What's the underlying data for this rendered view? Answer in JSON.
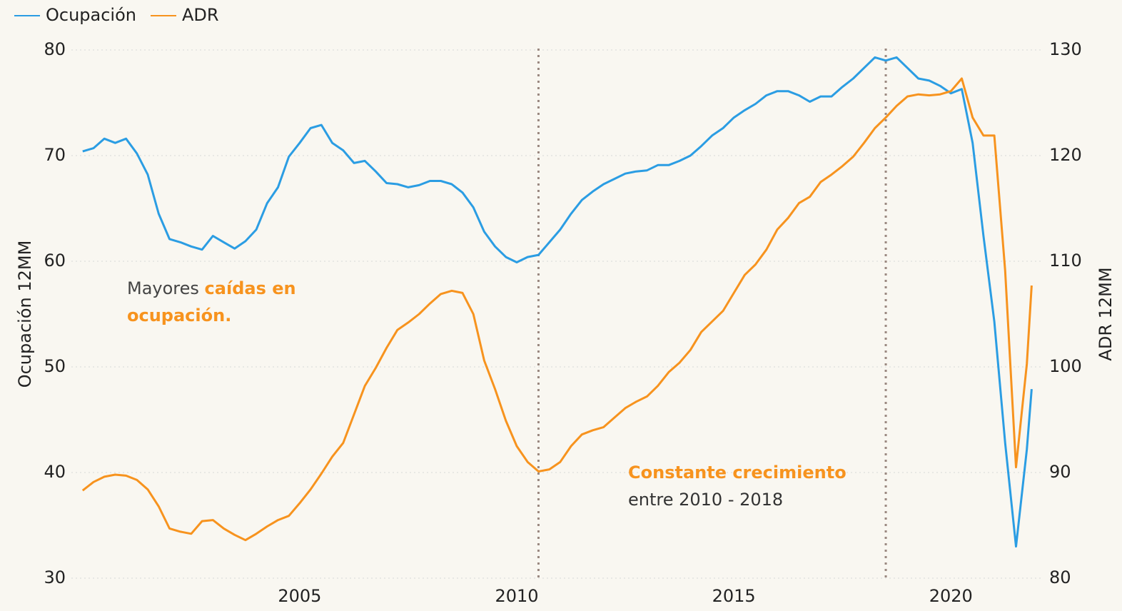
{
  "chart_data": {
    "type": "line",
    "x": [
      2000,
      2000.25,
      2000.5,
      2000.75,
      2001,
      2001.25,
      2001.5,
      2001.75,
      2002,
      2002.25,
      2002.5,
      2002.75,
      2003,
      2003.25,
      2003.5,
      2003.75,
      2004,
      2004.25,
      2004.5,
      2004.75,
      2005,
      2005.25,
      2005.5,
      2005.75,
      2006,
      2006.25,
      2006.5,
      2006.75,
      2007,
      2007.25,
      2007.5,
      2007.75,
      2008,
      2008.25,
      2008.5,
      2008.75,
      2009,
      2009.25,
      2009.5,
      2009.75,
      2010,
      2010.25,
      2010.5,
      2010.75,
      2011,
      2011.25,
      2011.5,
      2011.75,
      2012,
      2012.25,
      2012.5,
      2012.75,
      2013,
      2013.25,
      2013.5,
      2013.75,
      2014,
      2014.25,
      2014.5,
      2014.75,
      2015,
      2015.25,
      2015.5,
      2015.75,
      2016,
      2016.25,
      2016.5,
      2016.75,
      2017,
      2017.25,
      2017.5,
      2017.75,
      2018,
      2018.25,
      2018.5,
      2018.75,
      2019,
      2019.25,
      2019.5,
      2019.75,
      2020,
      2020.25,
      2020.5,
      2020.75,
      2021,
      2021.25,
      2021.5,
      2021.75,
      2021.86
    ],
    "series": [
      {
        "name": "Ocupación",
        "color": "#2b9de3",
        "values": [
          70.4,
          70.7,
          71.6,
          71.2,
          71.6,
          70.2,
          68.2,
          64.5,
          62.1,
          61.8,
          61.4,
          61.1,
          62.4,
          61.8,
          61.2,
          61.9,
          63.0,
          65.5,
          67.0,
          69.9,
          71.2,
          72.6,
          72.9,
          71.2,
          70.5,
          69.3,
          69.5,
          68.5,
          67.4,
          67.3,
          67.0,
          67.2,
          67.6,
          67.6,
          67.3,
          66.5,
          65.1,
          62.8,
          61.4,
          60.4,
          59.9,
          60.4,
          60.6,
          61.8,
          63.0,
          64.5,
          65.8,
          66.6,
          67.3,
          67.8,
          68.3,
          68.5,
          68.6,
          69.1,
          69.1,
          69.5,
          70.0,
          70.9,
          71.9,
          72.6,
          73.6,
          74.3,
          74.9,
          75.7,
          76.1,
          76.1,
          75.7,
          75.1,
          75.6,
          75.6,
          76.5,
          77.3,
          78.3,
          79.3,
          79.0,
          79.3,
          78.3,
          77.3,
          77.1,
          76.6,
          75.9,
          76.3,
          71.2,
          62.4,
          54.3,
          42.8,
          33.0,
          42.2,
          47.9
        ]
      },
      {
        "name": "ADR",
        "color": "#f7931e",
        "axis": "y2",
        "values": [
          88.3,
          89.1,
          89.6,
          89.8,
          89.7,
          89.3,
          88.4,
          86.8,
          84.7,
          84.4,
          84.2,
          85.4,
          85.5,
          84.7,
          84.1,
          83.6,
          84.2,
          84.9,
          85.5,
          85.9,
          87.1,
          88.4,
          89.9,
          91.5,
          92.8,
          95.5,
          98.2,
          99.9,
          101.8,
          103.5,
          104.2,
          105.0,
          106.0,
          106.9,
          107.2,
          107.0,
          105.0,
          100.6,
          97.9,
          94.9,
          92.5,
          91.0,
          90.1,
          90.3,
          91.0,
          92.5,
          93.6,
          94.0,
          94.3,
          95.2,
          96.1,
          96.7,
          97.2,
          98.2,
          99.5,
          100.4,
          101.6,
          103.3,
          104.3,
          105.3,
          107.0,
          108.7,
          109.7,
          111.1,
          113.0,
          114.1,
          115.5,
          116.1,
          117.5,
          118.2,
          119.0,
          119.9,
          121.2,
          122.6,
          123.6,
          124.7,
          125.6,
          125.8,
          125.7,
          125.8,
          126.1,
          127.3,
          123.6,
          121.9,
          121.9,
          109.1,
          90.5,
          100.3,
          107.7
        ]
      }
    ],
    "ylabel": "Ocupación 12MM",
    "y2label": "ADR 12MM",
    "xlim": [
      1999.74,
      2022.1
    ],
    "xticks": [
      2005,
      2010,
      2015,
      2020
    ],
    "ylim": [
      30,
      80
    ],
    "yticks": [
      30,
      40,
      50,
      60,
      70,
      80
    ],
    "y2lim": [
      80,
      130
    ],
    "y2ticks": [
      80,
      90,
      100,
      110,
      120,
      130
    ],
    "grid": true,
    "legend": "top-left",
    "vlines": [
      2010.5,
      2018.5
    ],
    "annotations": [
      {
        "lines": [
          [
            {
              "text": "Mayores ",
              "color": "#444444",
              "bold": false
            },
            {
              "text": "caídas en",
              "color": "#f7931e",
              "bold": true
            }
          ],
          [
            {
              "text": "ocupación.",
              "color": "#f7931e",
              "bold": true
            }
          ]
        ]
      },
      {
        "lines": [
          [
            {
              "text": "Constante crecimiento",
              "color": "#f7931e",
              "bold": true
            }
          ],
          [
            {
              "text": "entre 2010 - 2018",
              "color": "#333333",
              "bold": false
            }
          ]
        ]
      }
    ]
  }
}
